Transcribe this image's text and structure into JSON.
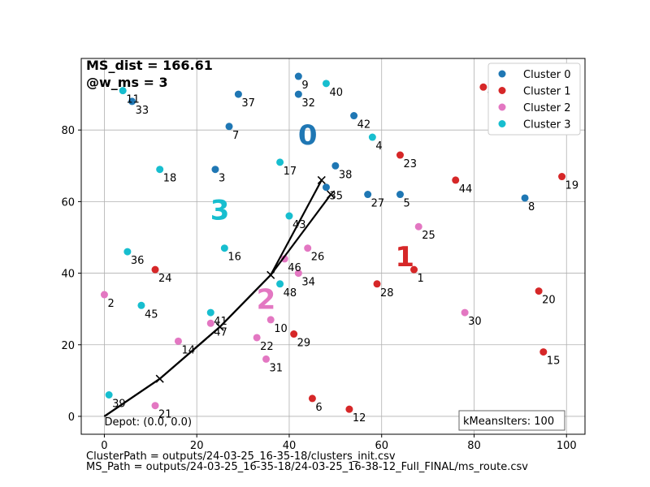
{
  "chart_data": {
    "type": "scatter",
    "xlim": [
      -5,
      104
    ],
    "ylim": [
      -5,
      100
    ],
    "xticks": [
      0,
      20,
      40,
      60,
      80,
      100
    ],
    "yticks": [
      0,
      20,
      40,
      60,
      80
    ],
    "grid": true,
    "legend_position": "top-right",
    "annotations": {
      "ms_dist": "MS_dist = 166.61",
      "w_ms": "@w_ms = 3",
      "depot": "Depot: (0.0, 0.0)",
      "kmeans_iters": "kMeansIters: 100"
    },
    "series": [
      {
        "name": "Cluster 0",
        "color": "#1f77b4",
        "points": [
          {
            "id": "3",
            "x": 24,
            "y": 69
          },
          {
            "id": "5",
            "x": 64,
            "y": 62
          },
          {
            "id": "7",
            "x": 27,
            "y": 81
          },
          {
            "id": "8",
            "x": 91,
            "y": 61
          },
          {
            "id": "9",
            "x": 42,
            "y": 95
          },
          {
            "id": "27",
            "x": 57,
            "y": 62
          },
          {
            "id": "32",
            "x": 42,
            "y": 90
          },
          {
            "id": "33",
            "x": 6,
            "y": 88
          },
          {
            "id": "35",
            "x": 48,
            "y": 64
          },
          {
            "id": "37",
            "x": 29,
            "y": 90
          },
          {
            "id": "38",
            "x": 50,
            "y": 70
          },
          {
            "id": "42",
            "x": 54,
            "y": 84
          }
        ]
      },
      {
        "name": "Cluster 1",
        "color": "#d62728",
        "points": [
          {
            "id": "1",
            "x": 67,
            "y": 41
          },
          {
            "id": "6",
            "x": 45,
            "y": 5
          },
          {
            "id": "12",
            "x": 53,
            "y": 2
          },
          {
            "id": "13",
            "x": 82,
            "y": 92
          },
          {
            "id": "15",
            "x": 95,
            "y": 18
          },
          {
            "id": "19",
            "x": 99,
            "y": 67
          },
          {
            "id": "20",
            "x": 94,
            "y": 35
          },
          {
            "id": "23",
            "x": 64,
            "y": 73
          },
          {
            "id": "24",
            "x": 11,
            "y": 41
          },
          {
            "id": "28",
            "x": 59,
            "y": 37
          },
          {
            "id": "29",
            "x": 41,
            "y": 23
          },
          {
            "id": "44",
            "x": 76,
            "y": 66
          }
        ]
      },
      {
        "name": "Cluster 2",
        "color": "#e377c2",
        "points": [
          {
            "id": "2",
            "x": 0,
            "y": 34
          },
          {
            "id": "10",
            "x": 36,
            "y": 27
          },
          {
            "id": "14",
            "x": 16,
            "y": 21
          },
          {
            "id": "21",
            "x": 11,
            "y": 3
          },
          {
            "id": "22",
            "x": 33,
            "y": 22
          },
          {
            "id": "25",
            "x": 68,
            "y": 53
          },
          {
            "id": "26",
            "x": 44,
            "y": 47
          },
          {
            "id": "30",
            "x": 78,
            "y": 29
          },
          {
            "id": "31",
            "x": 35,
            "y": 16
          },
          {
            "id": "34",
            "x": 42,
            "y": 40
          },
          {
            "id": "46",
            "x": 39,
            "y": 44
          },
          {
            "id": "47",
            "x": 23,
            "y": 26
          }
        ]
      },
      {
        "name": "Cluster 3",
        "color": "#17becf",
        "points": [
          {
            "id": "4",
            "x": 58,
            "y": 78
          },
          {
            "id": "11",
            "x": 4,
            "y": 91
          },
          {
            "id": "16",
            "x": 26,
            "y": 47
          },
          {
            "id": "17",
            "x": 38,
            "y": 71
          },
          {
            "id": "18",
            "x": 12,
            "y": 69
          },
          {
            "id": "36",
            "x": 5,
            "y": 46
          },
          {
            "id": "39",
            "x": 1,
            "y": 6
          },
          {
            "id": "40",
            "x": 48,
            "y": 93
          },
          {
            "id": "41",
            "x": 23,
            "y": 29
          },
          {
            "id": "43",
            "x": 40,
            "y": 56
          },
          {
            "id": "45",
            "x": 8,
            "y": 31
          },
          {
            "id": "48",
            "x": 38,
            "y": 37
          }
        ]
      }
    ],
    "centroid_labels": [
      {
        "text": "0",
        "x": 44,
        "y": 76,
        "color": "#1f77b4"
      },
      {
        "text": "1",
        "x": 65,
        "y": 42,
        "color": "#d62728"
      },
      {
        "text": "2",
        "x": 35,
        "y": 30,
        "color": "#e377c2"
      },
      {
        "text": "3",
        "x": 25,
        "y": 55,
        "color": "#17becf"
      }
    ],
    "route_legs": [
      [
        [
          0,
          0
        ],
        [
          12,
          10.5
        ],
        [
          25,
          25
        ],
        [
          36,
          39.5
        ],
        [
          47,
          66
        ]
      ],
      [
        [
          0,
          0
        ],
        [
          12,
          10.5
        ],
        [
          25,
          25
        ],
        [
          36,
          39.5
        ],
        [
          49,
          62
        ]
      ]
    ],
    "route_color": "#000000"
  },
  "footer": {
    "cluster_path": "ClusterPath = outputs/24-03-25_16-35-18/clusters_init.csv",
    "ms_path": "MS_Path = outputs/24-03-25_16-35-18/24-03-25_16-38-12_Full_FINAL/ms_route.csv"
  }
}
